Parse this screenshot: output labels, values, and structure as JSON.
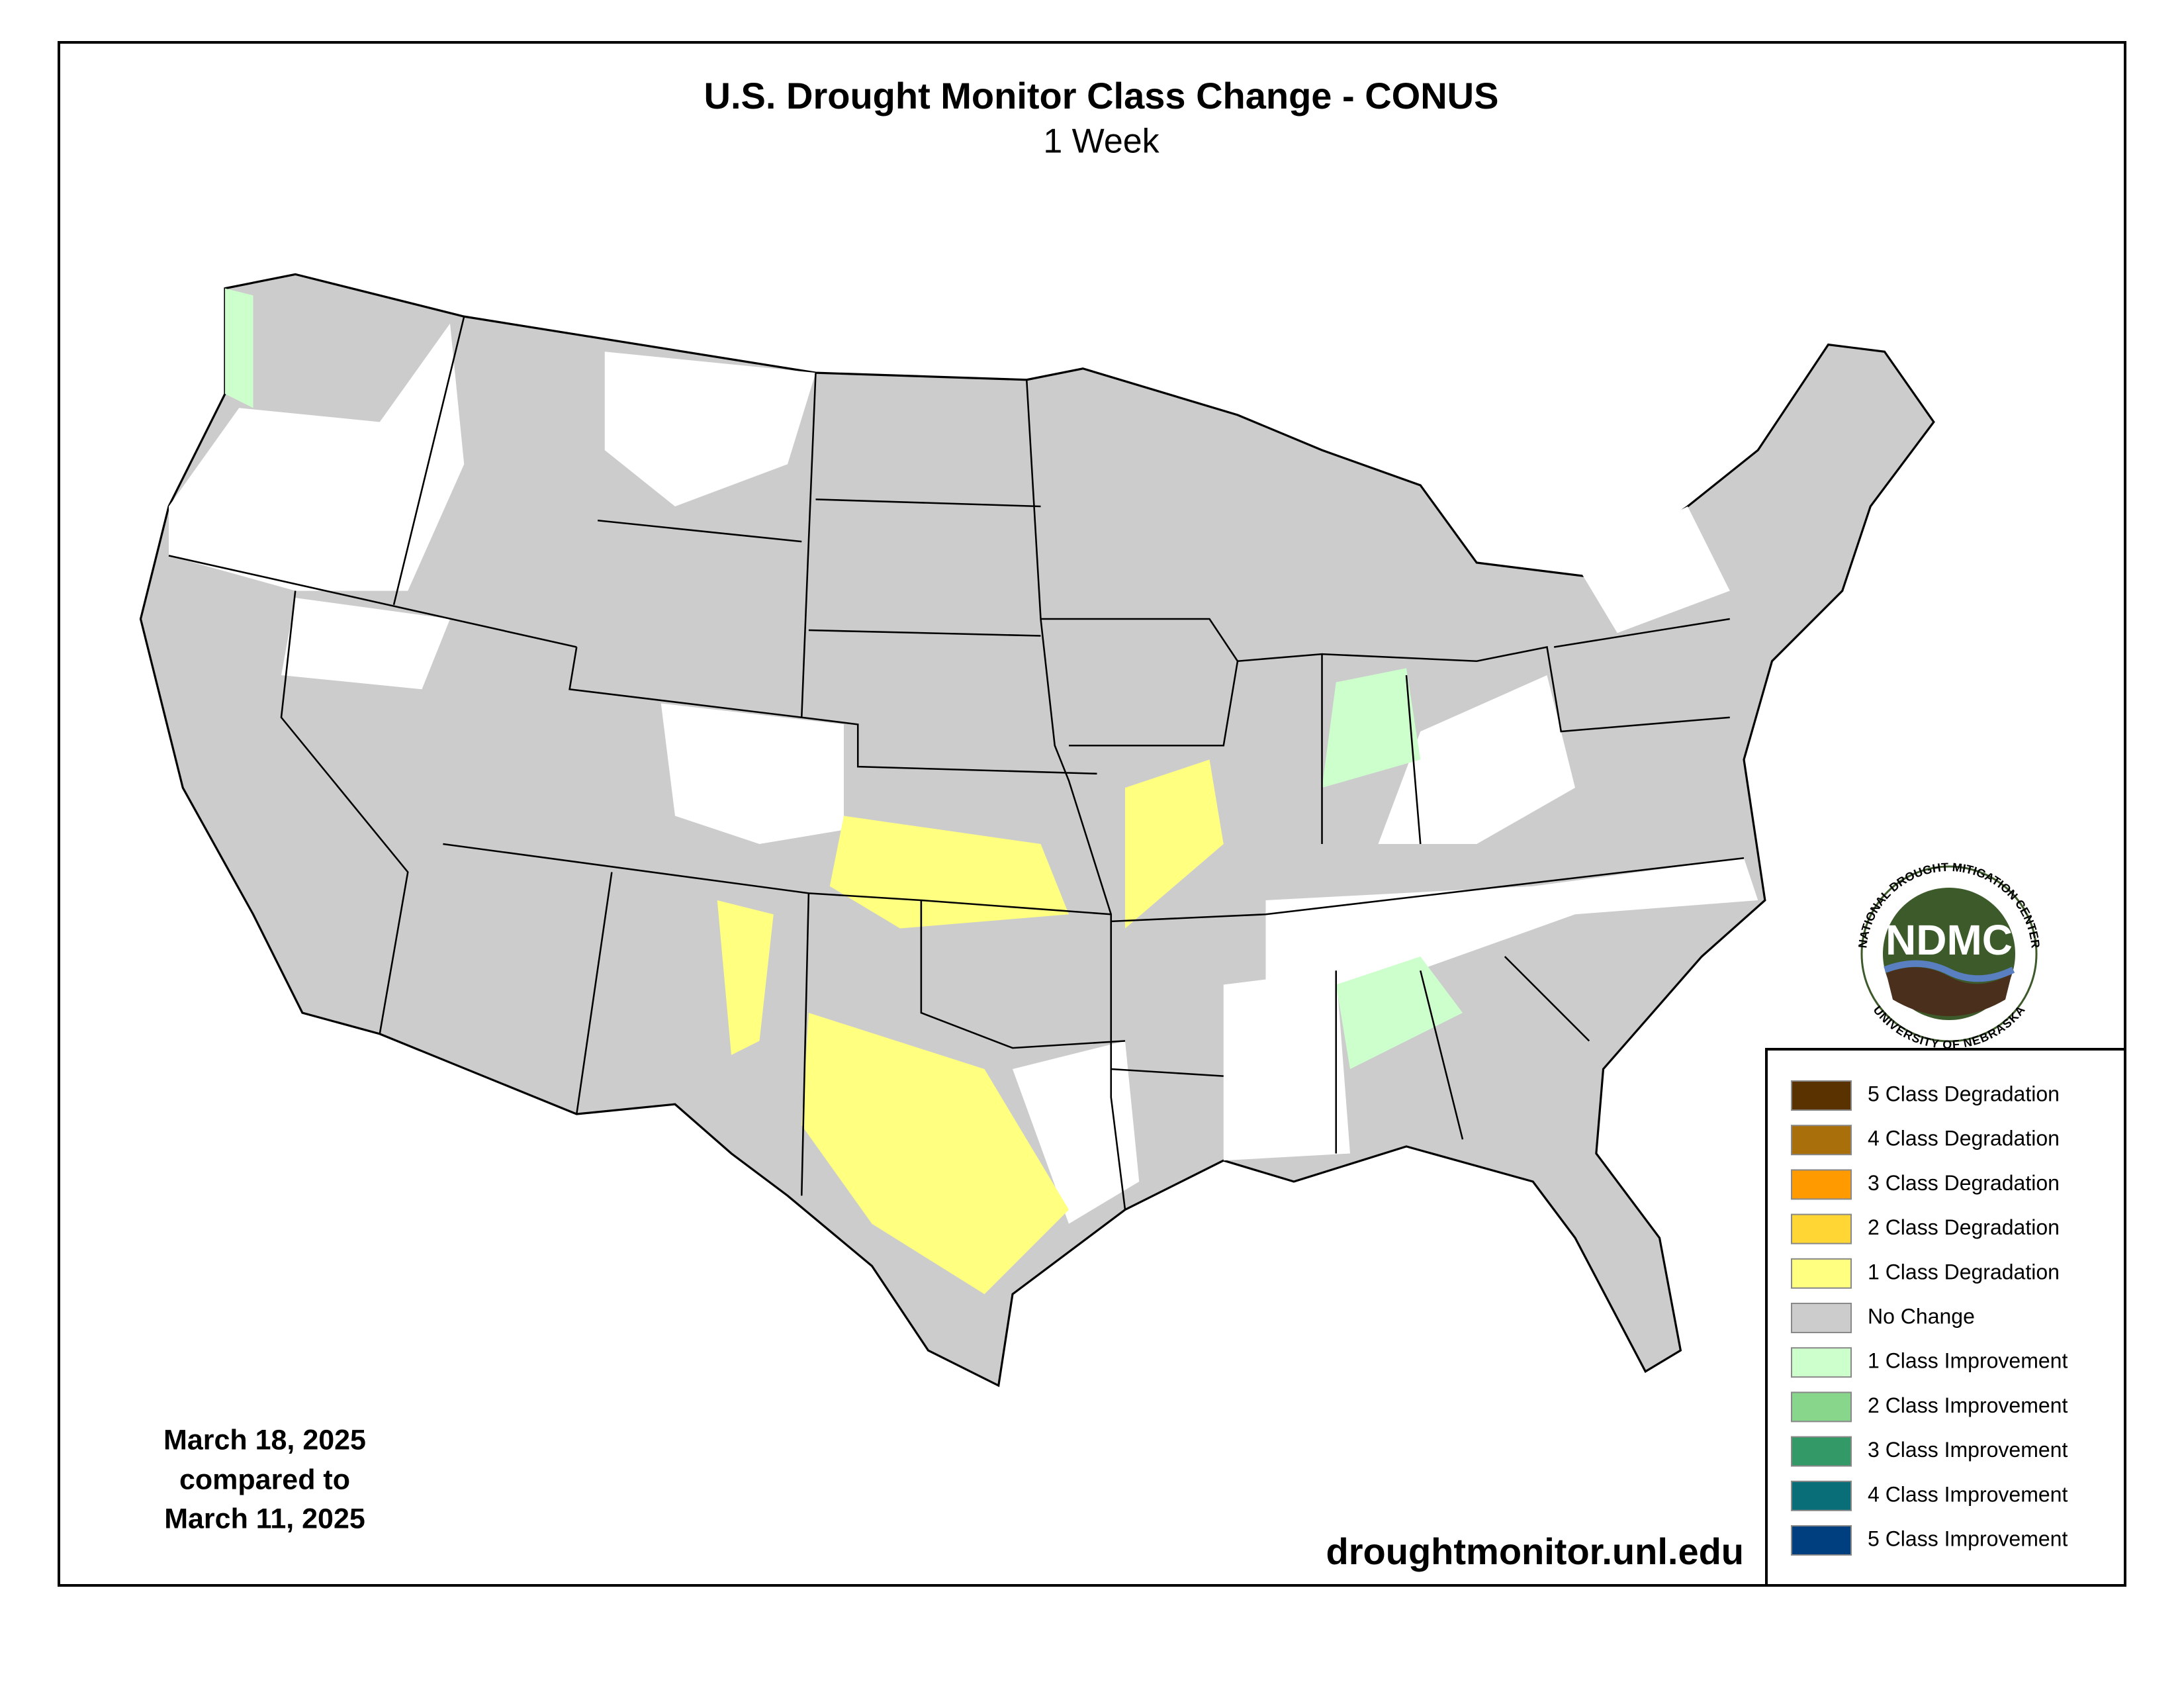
{
  "header": {
    "title": "U.S. Drought Monitor Class Change - CONUS",
    "subtitle": "1 Week"
  },
  "legend": {
    "items": [
      {
        "label": "5 Class Degradation",
        "color": "#5a3200"
      },
      {
        "label": "4 Class Degradation",
        "color": "#a86f0a"
      },
      {
        "label": "3 Class Degradation",
        "color": "#ff9a00"
      },
      {
        "label": "2 Class Degradation",
        "color": "#ffd633"
      },
      {
        "label": "1 Class Degradation",
        "color": "#ffff80"
      },
      {
        "label": "No Change",
        "color": "#cccccc"
      },
      {
        "label": "1 Class Improvement",
        "color": "#ccffcc"
      },
      {
        "label": "2 Class Improvement",
        "color": "#88d68c"
      },
      {
        "label": "3 Class Improvement",
        "color": "#339966"
      },
      {
        "label": "4 Class Improvement",
        "color": "#0a6e78"
      },
      {
        "label": "5 Class Improvement",
        "color": "#003f7f"
      }
    ]
  },
  "dates": {
    "line1": "March 18, 2025",
    "line2": "compared to",
    "line3": "March 11, 2025"
  },
  "source": "droughtmonitor.unl.edu",
  "logo": {
    "acronym": "NDMC",
    "top": "NATIONAL DROUGHT MITIGATION CENTER",
    "bottom": "UNIVERSITY OF NEBRASKA"
  }
}
